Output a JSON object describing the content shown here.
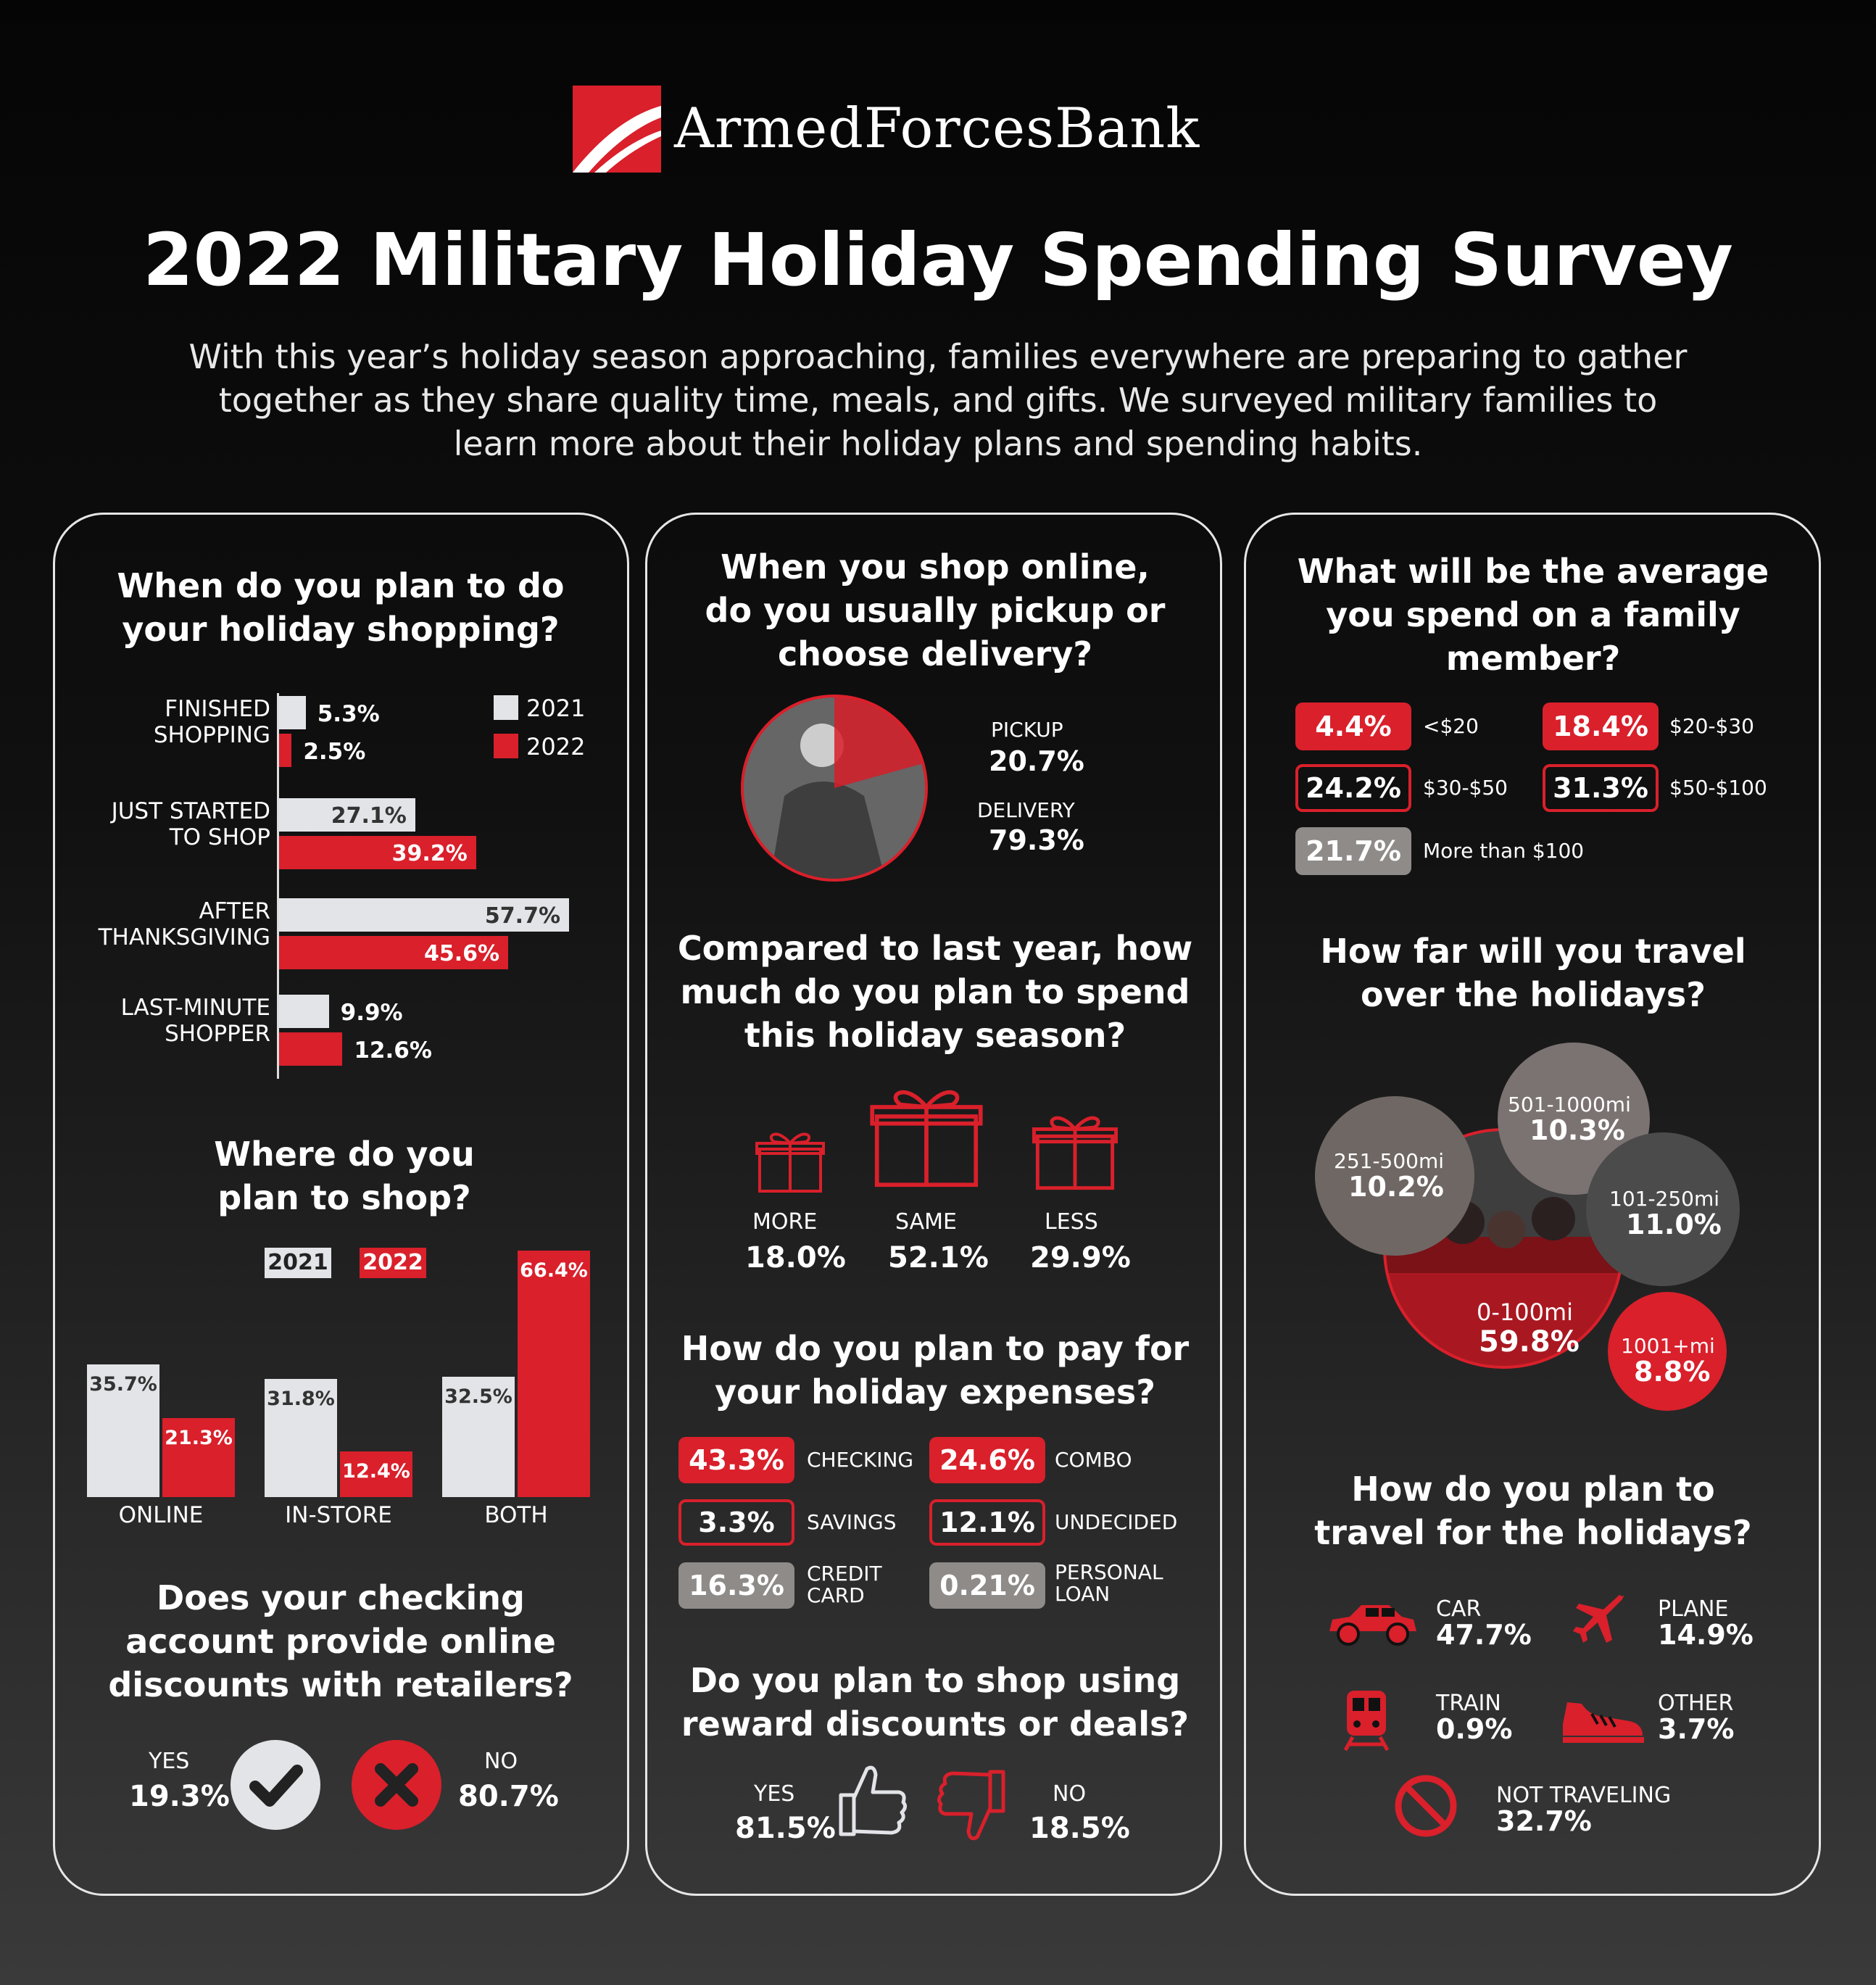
{
  "brand": {
    "name": "ArmedForcesBank"
  },
  "title": "2022 Military Holiday Spending Survey",
  "intro": "With this year’s holiday season approaching, families everywhere are preparing to gather together as they share quality time, meals, and gifts. We surveyed military families to learn more about their holiday plans and spending habits.",
  "colors": {
    "red": "#d9202b",
    "light": "#e3e4e8",
    "grey": "#8e8b89"
  },
  "chart_data": [
    {
      "type": "bar",
      "orientation": "horizontal",
      "title": "When do you plan to do your holiday shopping?",
      "categories": [
        "FINISHED SHOPPING",
        "JUST STARTED TO SHOP",
        "AFTER THANKSGIVING",
        "LAST-MINUTE SHOPPER"
      ],
      "category_lines": [
        [
          "FINISHED",
          "SHOPPING"
        ],
        [
          "JUST STARTED",
          "TO SHOP"
        ],
        [
          "AFTER",
          "THANKSGIVING"
        ],
        [
          "LAST-MINUTE",
          "SHOPPER"
        ]
      ],
      "series": [
        {
          "name": "2021",
          "values": [
            5.3,
            27.1,
            57.7,
            9.9
          ],
          "labels": [
            "5.3%",
            "27.1%",
            "57.7%",
            "9.9%"
          ]
        },
        {
          "name": "2022",
          "values": [
            2.5,
            39.2,
            45.6,
            12.6
          ],
          "labels": [
            "2.5%",
            "39.2%",
            "45.6%",
            "12.6%"
          ]
        }
      ],
      "legend": "top-right"
    },
    {
      "type": "bar",
      "title": "Where do you plan to shop?",
      "categories": [
        "ONLINE",
        "IN-STORE",
        "BOTH"
      ],
      "series": [
        {
          "name": "2021",
          "values": [
            35.7,
            31.8,
            32.5
          ],
          "labels": [
            "35.7%",
            "31.8%",
            "32.5%"
          ]
        },
        {
          "name": "2022",
          "values": [
            21.3,
            12.4,
            66.4
          ],
          "labels": [
            "21.3%",
            "12.4%",
            "66.4%"
          ]
        }
      ],
      "legend": "top"
    },
    {
      "type": "table",
      "title": "Does your checking account provide online discounts with retailers?",
      "items": [
        {
          "label": "YES",
          "value": "19.3%",
          "icon": "checkmark-icon"
        },
        {
          "label": "NO",
          "value": "80.7%",
          "icon": "x-icon"
        }
      ]
    },
    {
      "type": "pie",
      "title": "When you shop online, do you usually pickup or choose delivery?",
      "items": [
        {
          "label": "PICKUP",
          "value": 20.7,
          "text": "20.7%"
        },
        {
          "label": "DELIVERY",
          "value": 79.3,
          "text": "79.3%"
        }
      ]
    },
    {
      "type": "table",
      "title": "Compared to last year, how much do you plan to spend this holiday season?",
      "items": [
        {
          "label": "MORE",
          "value": "18.0%"
        },
        {
          "label": "SAME",
          "value": "52.1%"
        },
        {
          "label": "LESS",
          "value": "29.9%"
        }
      ]
    },
    {
      "type": "table",
      "title": "How do you plan to pay for your holiday expenses?",
      "items": [
        {
          "label": "CHECKING",
          "value": "43.3%"
        },
        {
          "label": "COMBO",
          "value": "24.6%"
        },
        {
          "label": "SAVINGS",
          "value": "3.3%"
        },
        {
          "label": "UNDECIDED",
          "value": "12.1%"
        },
        {
          "label": "CREDIT CARD",
          "lines": [
            "CREDIT",
            "CARD"
          ],
          "value": "16.3%"
        },
        {
          "label": "PERSONAL LOAN",
          "lines": [
            "PERSONAL",
            "LOAN"
          ],
          "value": "0.21%"
        }
      ]
    },
    {
      "type": "table",
      "title": "Do you plan to shop using reward discounts or deals?",
      "items": [
        {
          "label": "YES",
          "value": "81.5%",
          "icon": "thumbs-up-icon"
        },
        {
          "label": "NO",
          "value": "18.5%",
          "icon": "thumbs-down-icon"
        }
      ]
    },
    {
      "type": "table",
      "title": "What will be the average you spend on a family member?",
      "items": [
        {
          "label": "<$20",
          "value": "4.4%"
        },
        {
          "label": "$20-$30",
          "value": "18.4%"
        },
        {
          "label": "$30-$50",
          "value": "24.2%"
        },
        {
          "label": "$50-$100",
          "value": "31.3%"
        },
        {
          "label": "More than $100",
          "value": "21.7%"
        }
      ]
    },
    {
      "type": "table",
      "title": "How far will you travel over the holidays?",
      "items": [
        {
          "label": "0-100mi",
          "value": "59.8%"
        },
        {
          "label": "101-250mi",
          "value": "11.0%"
        },
        {
          "label": "251-500mi",
          "value": "10.2%"
        },
        {
          "label": "501-1000mi",
          "value": "10.3%"
        },
        {
          "label": "1001+mi",
          "value": "8.8%"
        }
      ]
    },
    {
      "type": "table",
      "title": "How do you plan to travel for the holidays?",
      "items": [
        {
          "label": "CAR",
          "value": "47.7%",
          "icon": "car-icon"
        },
        {
          "label": "PLANE",
          "value": "14.9%",
          "icon": "plane-icon"
        },
        {
          "label": "TRAIN",
          "value": "0.9%",
          "icon": "train-icon"
        },
        {
          "label": "OTHER",
          "value": "3.7%",
          "icon": "sneaker-icon"
        },
        {
          "label": "NOT TRAVELING",
          "value": "32.7%",
          "icon": "no-symbol-icon"
        }
      ]
    }
  ]
}
